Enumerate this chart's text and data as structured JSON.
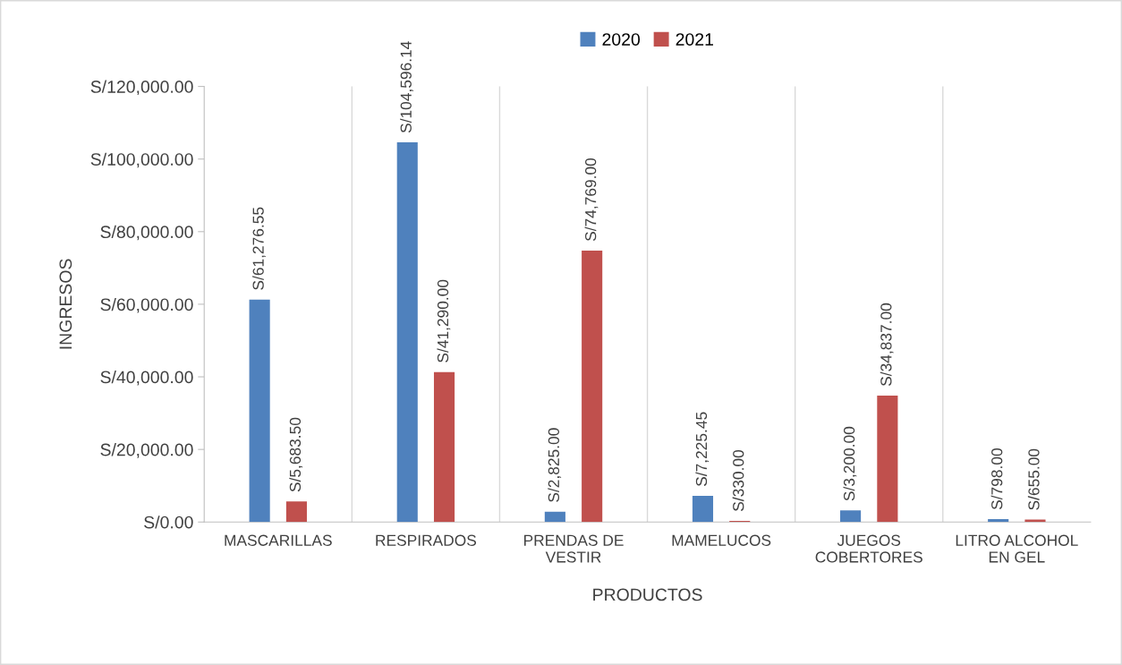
{
  "chart_data": {
    "type": "bar",
    "xlabel": "PRODUCTOS",
    "ylabel": "INGRESOS",
    "categories": [
      "MASCARILLAS",
      "RESPIRADOS",
      "PRENDAS DE VESTIR",
      "MAMELUCOS",
      "JUEGOS COBERTORES",
      "LITRO ALCOHOL EN GEL"
    ],
    "series": [
      {
        "name": "2020",
        "color": "#4f81bd",
        "values": [
          61276.55,
          104596.14,
          2825.0,
          7225.45,
          3200.0,
          798.0
        ],
        "value_labels": [
          "S/61,276.55",
          "S/104,596.14",
          "S/2,825.00",
          "S/7,225.45",
          "S/3,200.00",
          "S/798.00"
        ]
      },
      {
        "name": "2021",
        "color": "#c0504d",
        "values": [
          5683.5,
          41290.0,
          74769.0,
          330.0,
          34837.0,
          655.0
        ],
        "value_labels": [
          "S/5,683.50",
          "S/41,290.00",
          "S/74,769.00",
          "S/330.00",
          "S/34,837.00",
          "S/655.00"
        ]
      }
    ],
    "ylim": [
      0,
      120000
    ],
    "yticks": [
      {
        "value": 0,
        "label": "S/0.00"
      },
      {
        "value": 20000,
        "label": "S/20,000.00"
      },
      {
        "value": 40000,
        "label": "S/40,000.00"
      },
      {
        "value": 60000,
        "label": "S/60,000.00"
      },
      {
        "value": 80000,
        "label": "S/80,000.00"
      },
      {
        "value": 100000,
        "label": "S/100,000.00"
      },
      {
        "value": 120000,
        "label": "S/120,000.00"
      }
    ],
    "grid": "x",
    "legend": "top"
  }
}
